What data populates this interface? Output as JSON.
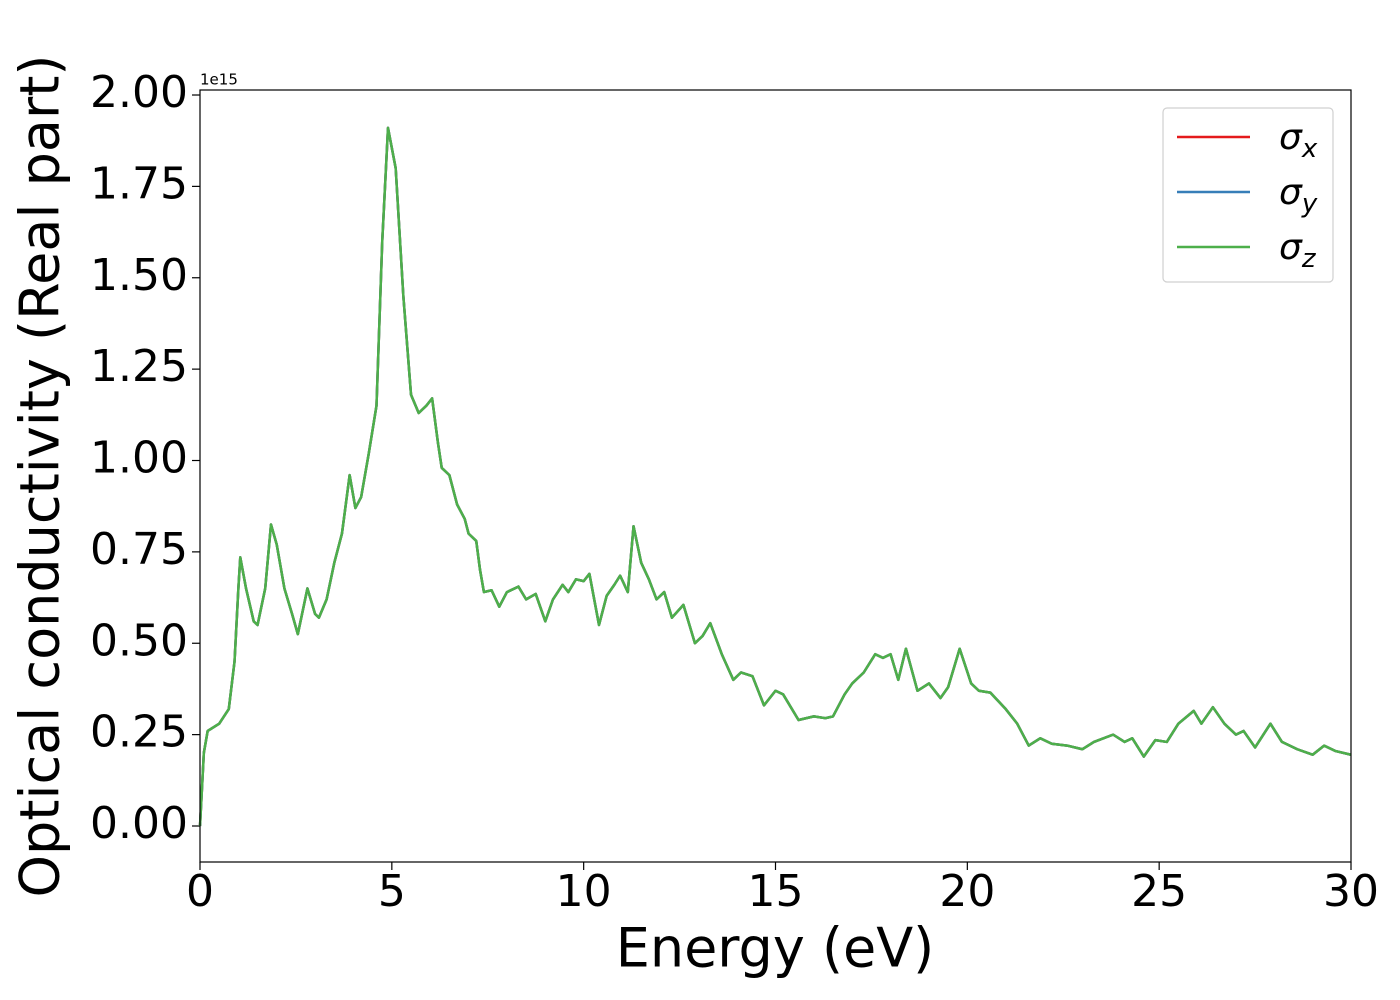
{
  "chart_data": {
    "type": "line",
    "xlabel": "Energy (eV)",
    "ylabel": "Optical conductivity (Real part)",
    "y_offset_label": "1e15",
    "xlim": [
      0,
      30
    ],
    "ylim": [
      -0.0985,
      2.0137
    ],
    "xticks": [
      0,
      5,
      10,
      15,
      20,
      25,
      30
    ],
    "yticks": [
      {
        "value": 0,
        "label": "0.00"
      },
      {
        "value": 0.25,
        "label": "0.25"
      },
      {
        "value": 0.5,
        "label": "0.50"
      },
      {
        "value": 0.75,
        "label": "0.75"
      },
      {
        "value": 1.0,
        "label": "1.00"
      },
      {
        "value": 1.25,
        "label": "1.25"
      },
      {
        "value": 1.5,
        "label": "1.50"
      },
      {
        "value": 1.75,
        "label": "1.75"
      },
      {
        "value": 2.0,
        "label": "2.00"
      }
    ],
    "legend": "upper right",
    "x": [
      0,
      0.1,
      0.2,
      0.5,
      0.75,
      0.9,
      1.0,
      1.05,
      1.2,
      1.4,
      1.5,
      1.7,
      1.85,
      2.0,
      2.2,
      2.4,
      2.55,
      2.7,
      2.8,
      3.0,
      3.1,
      3.3,
      3.5,
      3.7,
      3.9,
      4.05,
      4.2,
      4.4,
      4.6,
      4.75,
      4.9,
      5.1,
      5.3,
      5.5,
      5.7,
      5.9,
      6.05,
      6.2,
      6.3,
      6.5,
      6.7,
      6.9,
      7.0,
      7.2,
      7.3,
      7.4,
      7.6,
      7.8,
      8.0,
      8.3,
      8.5,
      8.75,
      9.0,
      9.2,
      9.45,
      9.6,
      9.8,
      10.0,
      10.15,
      10.4,
      10.6,
      10.8,
      10.95,
      11.15,
      11.3,
      11.5,
      11.7,
      11.9,
      12.1,
      12.3,
      12.6,
      12.9,
      13.1,
      13.3,
      13.6,
      13.9,
      14.1,
      14.4,
      14.7,
      15.0,
      15.2,
      15.6,
      16.0,
      16.3,
      16.5,
      16.8,
      17.0,
      17.3,
      17.6,
      17.8,
      18.0,
      18.2,
      18.4,
      18.7,
      19.0,
      19.3,
      19.5,
      19.8,
      20.1,
      20.3,
      20.6,
      21.0,
      21.3,
      21.6,
      21.9,
      22.2,
      22.6,
      23.0,
      23.3,
      23.8,
      24.1,
      24.3,
      24.6,
      24.9,
      25.2,
      25.5,
      25.9,
      26.1,
      26.4,
      26.7,
      27.0,
      27.2,
      27.5,
      27.9,
      28.2,
      28.6,
      29.0,
      29.3,
      29.6,
      30.0
    ],
    "series": [
      {
        "name": "σx",
        "color": "#e41a1c",
        "values": [
          0,
          0.2,
          0.26,
          0.28,
          0.32,
          0.45,
          0.65,
          0.735,
          0.65,
          0.56,
          0.55,
          0.65,
          0.825,
          0.77,
          0.65,
          0.58,
          0.525,
          0.6,
          0.65,
          0.58,
          0.57,
          0.62,
          0.72,
          0.8,
          0.96,
          0.87,
          0.9,
          1.02,
          1.15,
          1.6,
          1.91,
          1.8,
          1.45,
          1.18,
          1.13,
          1.15,
          1.17,
          1.05,
          0.98,
          0.96,
          0.88,
          0.84,
          0.8,
          0.78,
          0.7,
          0.64,
          0.645,
          0.6,
          0.64,
          0.655,
          0.62,
          0.635,
          0.56,
          0.62,
          0.66,
          0.64,
          0.675,
          0.67,
          0.69,
          0.55,
          0.63,
          0.66,
          0.685,
          0.64,
          0.82,
          0.72,
          0.675,
          0.62,
          0.64,
          0.57,
          0.605,
          0.5,
          0.52,
          0.555,
          0.47,
          0.4,
          0.42,
          0.41,
          0.33,
          0.37,
          0.36,
          0.29,
          0.3,
          0.295,
          0.3,
          0.36,
          0.39,
          0.42,
          0.47,
          0.46,
          0.47,
          0.4,
          0.485,
          0.37,
          0.39,
          0.35,
          0.38,
          0.485,
          0.39,
          0.37,
          0.365,
          0.32,
          0.28,
          0.22,
          0.24,
          0.225,
          0.22,
          0.21,
          0.23,
          0.25,
          0.23,
          0.24,
          0.19,
          0.235,
          0.23,
          0.28,
          0.315,
          0.28,
          0.325,
          0.28,
          0.25,
          0.26,
          0.215,
          0.28,
          0.23,
          0.21,
          0.195,
          0.22,
          0.205,
          0.195
        ]
      },
      {
        "name": "σy",
        "color": "#377eb8",
        "values": [
          0,
          0.2,
          0.26,
          0.28,
          0.32,
          0.45,
          0.65,
          0.735,
          0.65,
          0.56,
          0.55,
          0.65,
          0.825,
          0.77,
          0.65,
          0.58,
          0.525,
          0.6,
          0.65,
          0.58,
          0.57,
          0.62,
          0.72,
          0.8,
          0.96,
          0.87,
          0.9,
          1.02,
          1.15,
          1.6,
          1.91,
          1.8,
          1.45,
          1.18,
          1.13,
          1.15,
          1.17,
          1.05,
          0.98,
          0.96,
          0.88,
          0.84,
          0.8,
          0.78,
          0.7,
          0.64,
          0.645,
          0.6,
          0.64,
          0.655,
          0.62,
          0.635,
          0.56,
          0.62,
          0.66,
          0.64,
          0.675,
          0.67,
          0.69,
          0.55,
          0.63,
          0.66,
          0.685,
          0.64,
          0.82,
          0.72,
          0.675,
          0.62,
          0.64,
          0.57,
          0.605,
          0.5,
          0.52,
          0.555,
          0.47,
          0.4,
          0.42,
          0.41,
          0.33,
          0.37,
          0.36,
          0.29,
          0.3,
          0.295,
          0.3,
          0.36,
          0.39,
          0.42,
          0.47,
          0.46,
          0.47,
          0.4,
          0.485,
          0.37,
          0.39,
          0.35,
          0.38,
          0.485,
          0.39,
          0.37,
          0.365,
          0.32,
          0.28,
          0.22,
          0.24,
          0.225,
          0.22,
          0.21,
          0.23,
          0.25,
          0.23,
          0.24,
          0.19,
          0.235,
          0.23,
          0.28,
          0.315,
          0.28,
          0.325,
          0.28,
          0.25,
          0.26,
          0.215,
          0.28,
          0.23,
          0.21,
          0.195,
          0.22,
          0.205,
          0.195
        ]
      },
      {
        "name": "σz",
        "color": "#4daf4a",
        "values": [
          0,
          0.2,
          0.26,
          0.28,
          0.32,
          0.45,
          0.65,
          0.735,
          0.65,
          0.56,
          0.55,
          0.65,
          0.825,
          0.77,
          0.65,
          0.58,
          0.525,
          0.6,
          0.65,
          0.58,
          0.57,
          0.62,
          0.72,
          0.8,
          0.96,
          0.87,
          0.9,
          1.02,
          1.15,
          1.6,
          1.91,
          1.8,
          1.45,
          1.18,
          1.13,
          1.15,
          1.17,
          1.05,
          0.98,
          0.96,
          0.88,
          0.84,
          0.8,
          0.78,
          0.7,
          0.64,
          0.645,
          0.6,
          0.64,
          0.655,
          0.62,
          0.635,
          0.56,
          0.62,
          0.66,
          0.64,
          0.675,
          0.67,
          0.69,
          0.55,
          0.63,
          0.66,
          0.685,
          0.64,
          0.82,
          0.72,
          0.675,
          0.62,
          0.64,
          0.57,
          0.605,
          0.5,
          0.52,
          0.555,
          0.47,
          0.4,
          0.42,
          0.41,
          0.33,
          0.37,
          0.36,
          0.29,
          0.3,
          0.295,
          0.3,
          0.36,
          0.39,
          0.42,
          0.47,
          0.46,
          0.47,
          0.4,
          0.485,
          0.37,
          0.39,
          0.35,
          0.38,
          0.485,
          0.39,
          0.37,
          0.365,
          0.32,
          0.28,
          0.22,
          0.24,
          0.225,
          0.22,
          0.21,
          0.23,
          0.25,
          0.23,
          0.24,
          0.19,
          0.235,
          0.23,
          0.28,
          0.315,
          0.28,
          0.325,
          0.28,
          0.25,
          0.26,
          0.215,
          0.28,
          0.23,
          0.21,
          0.195,
          0.22,
          0.205,
          0.195
        ]
      }
    ]
  }
}
